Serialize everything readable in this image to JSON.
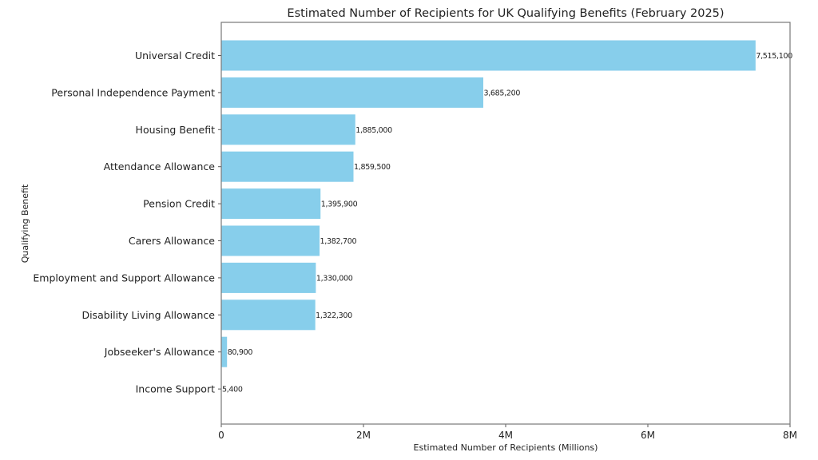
{
  "chart_data": {
    "type": "bar",
    "orientation": "horizontal",
    "title": "Estimated Number of Recipients for UK Qualifying Benefits (February 2025)",
    "xlabel": "Estimated Number of Recipients (Millions)",
    "ylabel": "Qualifying Benefit",
    "xlim": [
      0,
      8000000
    ],
    "xticks": [
      0,
      2000000,
      4000000,
      6000000,
      8000000
    ],
    "xtick_labels": [
      "0",
      "2M",
      "4M",
      "6M",
      "8M"
    ],
    "grid": false,
    "bar_color": "#87ceeb",
    "categories": [
      "Universal Credit",
      "Personal Independence Payment",
      "Housing Benefit",
      "Attendance Allowance",
      "Pension Credit",
      "Carers Allowance",
      "Employment and Support Allowance",
      "Disability Living Allowance",
      "Jobseeker's Allowance",
      "Income Support"
    ],
    "values": [
      7515100,
      3685200,
      1885000,
      1859500,
      1395900,
      1382700,
      1330000,
      1322300,
      80900,
      5400
    ],
    "data_labels": [
      "7,515,100",
      "3,685,200",
      "1,885,000",
      "1,859,500",
      "1,395,900",
      "1,382,700",
      "1,330,000",
      "1,322,300",
      "80,900",
      "5,400"
    ]
  }
}
